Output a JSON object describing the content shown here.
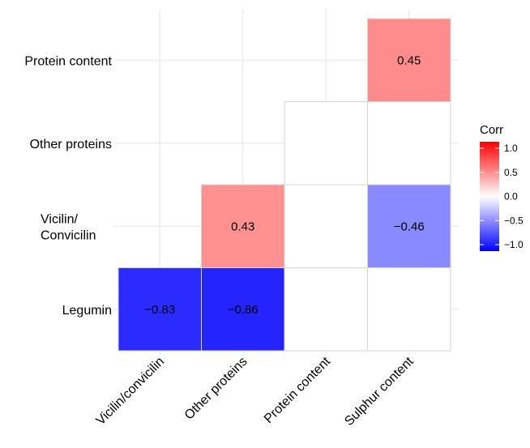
{
  "chart_data": {
    "type": "heatmap",
    "title": "",
    "xlabel": "",
    "ylabel": "",
    "x_categories": [
      "Vicilin/convicilin",
      "Other proteins",
      "Protein content",
      "Sulphur content"
    ],
    "y_categories": [
      "Legumin",
      "Vicilin/\nConvicilin",
      "Other proteins",
      "Protein content"
    ],
    "cells": [
      {
        "x": "Vicilin/convicilin",
        "y": "Legumin",
        "value": -0.83,
        "label": "−0.83"
      },
      {
        "x": "Other proteins",
        "y": "Legumin",
        "value": -0.86,
        "label": "−0.86"
      },
      {
        "x": "Protein content",
        "y": "Legumin",
        "value": 0,
        "label": ""
      },
      {
        "x": "Sulphur content",
        "y": "Legumin",
        "value": 0,
        "label": ""
      },
      {
        "x": "Other proteins",
        "y": "Vicilin/\nConvicilin",
        "value": 0.43,
        "label": "0.43"
      },
      {
        "x": "Protein content",
        "y": "Vicilin/\nConvicilin",
        "value": 0,
        "label": ""
      },
      {
        "x": "Sulphur content",
        "y": "Vicilin/\nConvicilin",
        "value": -0.46,
        "label": "−0.46"
      },
      {
        "x": "Protein content",
        "y": "Other proteins",
        "value": 0,
        "label": ""
      },
      {
        "x": "Sulphur content",
        "y": "Other proteins",
        "value": 0,
        "label": ""
      },
      {
        "x": "Sulphur content",
        "y": "Protein content",
        "value": 0.45,
        "label": "0.45"
      }
    ],
    "legend": {
      "title": "Corr",
      "position": "right",
      "range": [
        -1,
        1
      ],
      "ticks": [
        1.0,
        0.5,
        0.0,
        -0.5,
        -1.0
      ],
      "tick_labels": [
        "1.0",
        "0.5",
        "0.0",
        "−0.5",
        "−1.0"
      ],
      "colors": {
        "low": "#0000ff",
        "mid": "#ffffff",
        "high": "#ff0000"
      }
    },
    "grid": true
  }
}
